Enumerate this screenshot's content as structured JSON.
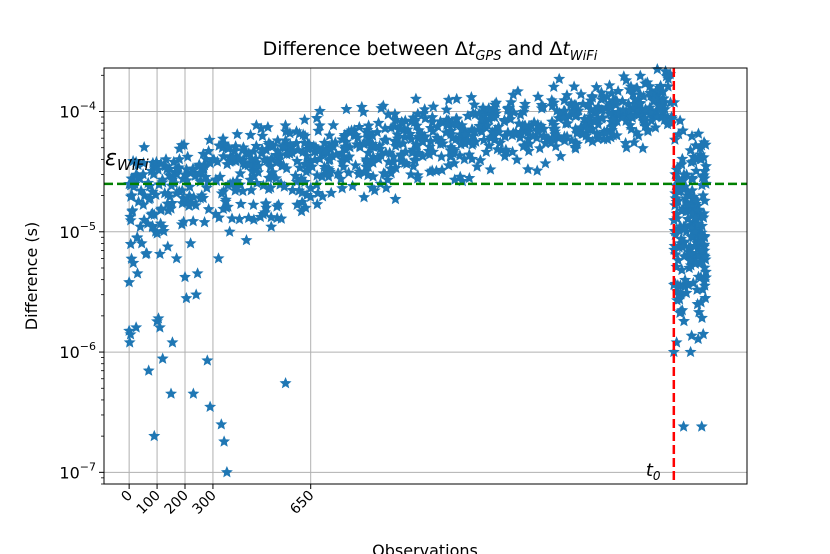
{
  "chart_data": {
    "type": "scatter",
    "title": {
      "prefix": "Difference between ",
      "delta": "Δ",
      "t": "t",
      "sub1": "GPS",
      "middle": " and ",
      "sub2": "WiFi"
    },
    "xlabel": "Observations",
    "ylabel": "Difference (s)",
    "yscale": "log",
    "xlim": [
      -90,
      2212
    ],
    "ylim": [
      8e-08,
      0.00023
    ],
    "grid": true,
    "x_ticks": [
      0,
      100,
      200,
      300,
      650
    ],
    "x_tick_labels": [
      "0",
      "100",
      "200",
      "300",
      "650"
    ],
    "y_ticks": [
      {
        "value": 1e-07,
        "base": "10",
        "exp": "−7"
      },
      {
        "value": 1e-06,
        "base": "10",
        "exp": "−6"
      },
      {
        "value": 1e-05,
        "base": "10",
        "exp": "−5"
      },
      {
        "value": 0.0001,
        "base": "10",
        "exp": "−4"
      }
    ],
    "marker": "star",
    "marker_color": "#1f77b4",
    "hline": {
      "y": 2.5e-05,
      "color": "#008000",
      "style": "dashed",
      "label": {
        "main": "ε",
        "sub": "WiFi"
      }
    },
    "vline": {
      "x": 1950,
      "color": "#ff0000",
      "style": "dashed",
      "label": {
        "main": "t",
        "sub": "0"
      }
    },
    "series": [
      {
        "points": [
          [
            0,
            3.8e-06
          ],
          [
            0,
            1.5e-06
          ],
          [
            2,
            1.2e-06
          ],
          [
            5,
            1.4e-06
          ],
          [
            10,
            2e-05
          ],
          [
            12,
            1.5e-05
          ],
          [
            15,
            5.5e-06
          ],
          [
            20,
            2.5e-05
          ],
          [
            25,
            1.6e-06
          ],
          [
            30,
            4.5e-06
          ],
          [
            35,
            2.8e-05
          ],
          [
            40,
            1.1e-05
          ],
          [
            45,
            8e-06
          ],
          [
            50,
            3e-05
          ],
          [
            55,
            2e-05
          ],
          [
            60,
            6.5e-06
          ],
          [
            70,
            7e-07
          ],
          [
            80,
            3.2e-05
          ],
          [
            90,
            2e-07
          ],
          [
            95,
            1e-05
          ],
          [
            100,
            1.8e-06
          ],
          [
            105,
            1.9e-06
          ],
          [
            110,
            1.6e-06
          ],
          [
            120,
            8.8e-07
          ],
          [
            130,
            3.5e-05
          ],
          [
            140,
            1.5e-05
          ],
          [
            150,
            4.5e-07
          ],
          [
            155,
            1.2e-06
          ],
          [
            160,
            3.8e-05
          ],
          [
            170,
            6e-06
          ],
          [
            180,
            4e-05
          ],
          [
            190,
            2.2e-05
          ],
          [
            200,
            4.2e-06
          ],
          [
            205,
            2.8e-06
          ],
          [
            210,
            1.8e-05
          ],
          [
            220,
            8e-06
          ],
          [
            230,
            4.5e-07
          ],
          [
            240,
            3e-06
          ],
          [
            245,
            4.5e-06
          ],
          [
            250,
            3.5e-05
          ],
          [
            260,
            2e-05
          ],
          [
            270,
            1.2e-05
          ],
          [
            280,
            8.5e-07
          ],
          [
            290,
            3.5e-07
          ],
          [
            300,
            4e-05
          ],
          [
            310,
            1.4e-05
          ],
          [
            320,
            6e-06
          ],
          [
            330,
            2.5e-07
          ],
          [
            340,
            1.8e-07
          ],
          [
            350,
            1e-07
          ],
          [
            360,
            1e-05
          ],
          [
            380,
            2.2e-05
          ],
          [
            400,
            1.7e-05
          ],
          [
            420,
            8.5e-06
          ],
          [
            450,
            3.5e-05
          ],
          [
            480,
            1.4e-05
          ],
          [
            500,
            2.8e-05
          ],
          [
            530,
            1.3e-05
          ],
          [
            560,
            5.5e-07
          ],
          [
            600,
            2.6e-05
          ],
          [
            650,
            2.3e-05
          ],
          [
            700,
            3e-05
          ],
          [
            800,
            2.4e-05
          ],
          [
            900,
            2.5e-05
          ],
          [
            1100,
            3.2e-05
          ],
          [
            1200,
            4e-05
          ]
        ]
      },
      {
        "band": true,
        "x_start": 0,
        "x_end": 1948,
        "count": 900,
        "log_y_start": -4.68,
        "log_y_end": -3.92,
        "spread_low": 0.26,
        "spread_high": 0.14
      },
      {
        "points": [
          [
            1950,
            1e-06
          ],
          [
            1955,
            3e-05
          ],
          [
            1960,
            1.2e-06
          ],
          [
            1965,
            1.8e-05
          ],
          [
            1970,
            2.6e-05
          ],
          [
            1975,
            8e-06
          ],
          [
            1980,
            1.5e-05
          ],
          [
            1985,
            2.4e-07
          ],
          [
            1990,
            3.5e-06
          ],
          [
            1995,
            1e-05
          ],
          [
            2000,
            2e-05
          ],
          [
            2005,
            5e-06
          ],
          [
            2010,
            1e-06
          ],
          [
            2015,
            2.8e-05
          ],
          [
            2020,
            1.2e-05
          ],
          [
            2025,
            6e-06
          ],
          [
            2030,
            3.2e-05
          ],
          [
            2035,
            2.5e-06
          ],
          [
            2040,
            1.5e-05
          ],
          [
            2045,
            4e-05
          ],
          [
            2050,
            2.4e-07
          ],
          [
            2055,
            2e-05
          ],
          [
            2060,
            9e-06
          ],
          [
            2065,
            3.5e-05
          ]
        ]
      },
      {
        "cluster": true,
        "x_start": 1950,
        "x_end": 2065,
        "count": 180,
        "log_y_center": -4.95,
        "log_y_spread": 0.45
      }
    ]
  }
}
